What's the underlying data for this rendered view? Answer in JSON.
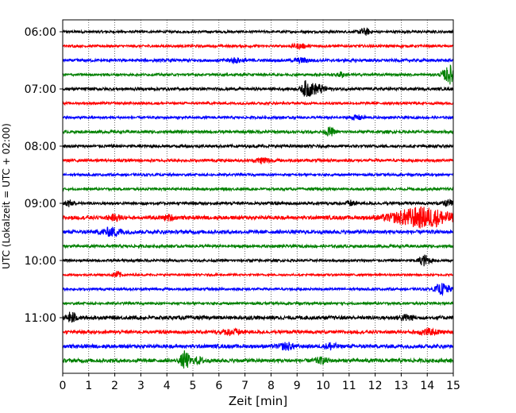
{
  "chart_data": {
    "type": "line",
    "title": "",
    "xlabel": "Zeit  [min]",
    "ylabel": "UTC (Lokalzeit = UTC + 02:00)",
    "xlim": [
      0,
      15
    ],
    "x_ticks": [
      "0",
      "1",
      "2",
      "3",
      "4",
      "5",
      "6",
      "7",
      "8",
      "9",
      "10",
      "11",
      "12",
      "13",
      "14",
      "15"
    ],
    "grid": "vertical dotted lines at each minute",
    "trace_interval_minutes": 15,
    "hour_labels": [
      "06:00",
      "07:00",
      "08:00",
      "09:00",
      "10:00",
      "11:00"
    ],
    "color_cycle": [
      "#000000",
      "#ff0000",
      "#0000ff",
      "#008000"
    ],
    "series": [
      {
        "start": "06:00",
        "color": "#000000",
        "amplitude": 0.3,
        "events": [
          {
            "t": 11.6,
            "a": 0.8,
            "w": 0.15
          }
        ]
      },
      {
        "start": "06:15",
        "color": "#ff0000",
        "amplitude": 0.3,
        "events": [
          {
            "t": 9.1,
            "a": 0.5,
            "w": 0.2
          }
        ]
      },
      {
        "start": "06:30",
        "color": "#0000ff",
        "amplitude": 0.35,
        "events": [
          {
            "t": 6.6,
            "a": 0.5,
            "w": 0.2
          },
          {
            "t": 9.2,
            "a": 0.5,
            "w": 0.2
          }
        ]
      },
      {
        "start": "06:45",
        "color": "#008000",
        "amplitude": 0.3,
        "events": [
          {
            "t": 10.7,
            "a": 0.6,
            "w": 0.1
          },
          {
            "t": 14.9,
            "a": 2.2,
            "w": 0.2
          }
        ]
      },
      {
        "start": "07:00",
        "color": "#000000",
        "amplitude": 0.35,
        "events": [
          {
            "t": 9.35,
            "a": 1.6,
            "w": 0.12
          },
          {
            "t": 9.6,
            "a": 0.9,
            "w": 0.2
          },
          {
            "t": 9.9,
            "a": 0.6,
            "w": 0.2
          }
        ]
      },
      {
        "start": "07:15",
        "color": "#ff0000",
        "amplitude": 0.3,
        "events": []
      },
      {
        "start": "07:30",
        "color": "#0000ff",
        "amplitude": 0.3,
        "events": [
          {
            "t": 11.3,
            "a": 0.5,
            "w": 0.2
          }
        ]
      },
      {
        "start": "07:45",
        "color": "#008000",
        "amplitude": 0.35,
        "events": [
          {
            "t": 10.25,
            "a": 1.0,
            "w": 0.12
          }
        ]
      },
      {
        "start": "08:00",
        "color": "#000000",
        "amplitude": 0.35,
        "events": []
      },
      {
        "start": "08:15",
        "color": "#ff0000",
        "amplitude": 0.35,
        "events": [
          {
            "t": 7.7,
            "a": 0.7,
            "w": 0.2
          }
        ]
      },
      {
        "start": "08:30",
        "color": "#0000ff",
        "amplitude": 0.3,
        "events": []
      },
      {
        "start": "08:45",
        "color": "#008000",
        "amplitude": 0.3,
        "events": []
      },
      {
        "start": "09:00",
        "color": "#000000",
        "amplitude": 0.35,
        "events": [
          {
            "t": 0.3,
            "a": 0.8,
            "w": 0.12
          },
          {
            "t": 11.1,
            "a": 0.6,
            "w": 0.15
          },
          {
            "t": 14.8,
            "a": 0.7,
            "w": 0.15
          }
        ]
      },
      {
        "start": "09:15",
        "color": "#ff0000",
        "amplitude": 0.45,
        "events": [
          {
            "t": 2.0,
            "a": 0.6,
            "w": 0.2
          },
          {
            "t": 4.1,
            "a": 0.6,
            "w": 0.15
          },
          {
            "t": 13.8,
            "a": 2.4,
            "w": 0.8
          }
        ]
      },
      {
        "start": "09:30",
        "color": "#0000ff",
        "amplitude": 0.45,
        "events": [
          {
            "t": 1.9,
            "a": 0.9,
            "w": 0.3
          }
        ]
      },
      {
        "start": "09:45",
        "color": "#008000",
        "amplitude": 0.35,
        "events": []
      },
      {
        "start": "10:00",
        "color": "#000000",
        "amplitude": 0.3,
        "events": [
          {
            "t": 13.9,
            "a": 1.3,
            "w": 0.15
          }
        ]
      },
      {
        "start": "10:15",
        "color": "#ff0000",
        "amplitude": 0.25,
        "events": [
          {
            "t": 2.1,
            "a": 0.8,
            "w": 0.12
          }
        ]
      },
      {
        "start": "10:30",
        "color": "#0000ff",
        "amplitude": 0.3,
        "events": [
          {
            "t": 14.6,
            "a": 1.3,
            "w": 0.2
          }
        ]
      },
      {
        "start": "10:45",
        "color": "#008000",
        "amplitude": 0.3,
        "events": []
      },
      {
        "start": "11:00",
        "color": "#000000",
        "amplitude": 0.45,
        "events": [
          {
            "t": 0.35,
            "a": 1.4,
            "w": 0.12
          },
          {
            "t": 13.2,
            "a": 0.6,
            "w": 0.2
          }
        ]
      },
      {
        "start": "11:15",
        "color": "#ff0000",
        "amplitude": 0.4,
        "events": [
          {
            "t": 6.5,
            "a": 0.6,
            "w": 0.3
          },
          {
            "t": 14.0,
            "a": 0.6,
            "w": 0.3
          }
        ]
      },
      {
        "start": "11:30",
        "color": "#0000ff",
        "amplitude": 0.45,
        "events": [
          {
            "t": 8.6,
            "a": 0.8,
            "w": 0.2
          },
          {
            "t": 10.3,
            "a": 0.8,
            "w": 0.15
          }
        ]
      },
      {
        "start": "11:45",
        "color": "#008000",
        "amplitude": 0.45,
        "events": [
          {
            "t": 4.7,
            "a": 2.2,
            "w": 0.12
          },
          {
            "t": 5.2,
            "a": 0.7,
            "w": 0.15
          },
          {
            "t": 9.9,
            "a": 0.6,
            "w": 0.2
          }
        ]
      }
    ]
  }
}
